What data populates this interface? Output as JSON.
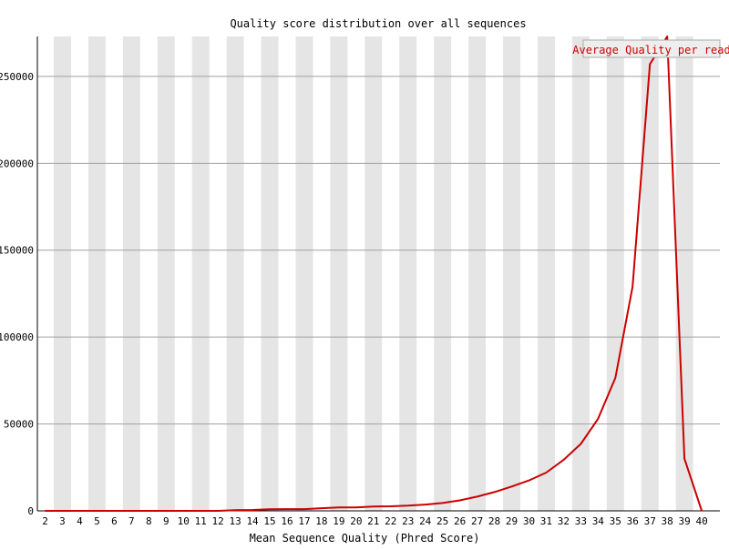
{
  "chart_data": {
    "type": "line",
    "title": "Quality score distribution over all sequences",
    "xlabel": "Mean Sequence Quality (Phred Score)",
    "ylabel": "",
    "categories": [
      "2",
      "3",
      "4",
      "5",
      "6",
      "7",
      "8",
      "9",
      "10",
      "11",
      "12",
      "13",
      "14",
      "15",
      "16",
      "17",
      "18",
      "19",
      "20",
      "21",
      "22",
      "23",
      "24",
      "25",
      "26",
      "27",
      "28",
      "29",
      "30",
      "31",
      "32",
      "33",
      "34",
      "35",
      "36",
      "37",
      "38",
      "39",
      "40"
    ],
    "yticks": [
      "0",
      "50000",
      "100000",
      "150000",
      "200000",
      "250000"
    ],
    "ylim": [
      0,
      273000
    ],
    "grid": true,
    "legend_position": "top-right",
    "series": [
      {
        "name": "Average Quality per read",
        "color": "#cc0000",
        "values": [
          0,
          0,
          0,
          0,
          0,
          0,
          0,
          0,
          0,
          0,
          0,
          400,
          500,
          900,
          1000,
          1000,
          1500,
          2000,
          2000,
          2500,
          2600,
          3000,
          3600,
          4500,
          6000,
          8200,
          10800,
          14000,
          17500,
          22000,
          29300,
          38500,
          53000,
          76500,
          129000,
          257000,
          273000,
          30000,
          0
        ]
      }
    ]
  }
}
